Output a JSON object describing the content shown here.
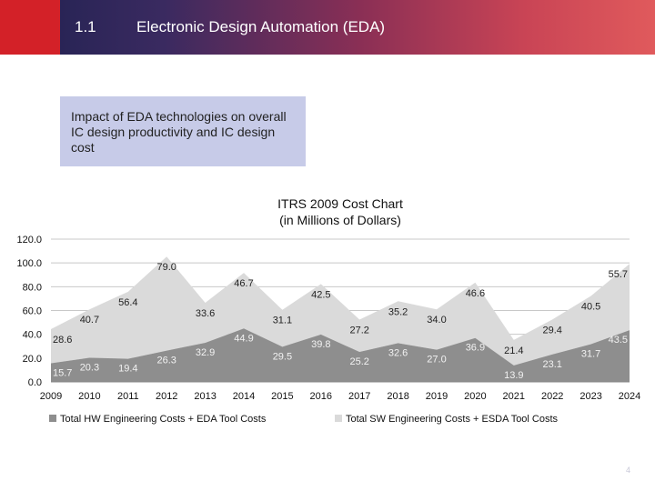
{
  "header": {
    "section_number": "1.1",
    "title": "Electronic Design Automation (EDA)"
  },
  "callout": {
    "text": "Impact of EDA technologies on overall IC design productivity and IC design cost"
  },
  "slide_number": "4",
  "colors": {
    "hw_series": "#8e8e8e",
    "sw_series": "#dadada",
    "header_red": "#d32128"
  },
  "chart_data": {
    "type": "area",
    "stacked": true,
    "title": [
      "ITRS 2009 Cost Chart",
      "(in Millions of Dollars)"
    ],
    "x": [
      "2009",
      "2010",
      "2011",
      "2012",
      "2013",
      "2014",
      "2015",
      "2016",
      "2017",
      "2018",
      "2019",
      "2020",
      "2021",
      "2022",
      "2023",
      "2024"
    ],
    "ylim": [
      0,
      120
    ],
    "yticks": [
      "0.0",
      "20.0",
      "40.0",
      "60.0",
      "80.0",
      "100.0",
      "120.0"
    ],
    "grid": true,
    "legend_position": "bottom",
    "series": [
      {
        "name": "Total HW Engineering Costs + EDA Tool Costs",
        "values": [
          15.7,
          20.3,
          19.4,
          26.3,
          32.9,
          44.9,
          29.5,
          39.8,
          25.2,
          32.6,
          27.0,
          36.9,
          13.9,
          23.1,
          31.7,
          43.5
        ],
        "labels": [
          "15.7",
          "20.3",
          "19.4",
          "26.3",
          "32.9",
          "44.9",
          "29.5",
          "39.8",
          "25.2",
          "32.6",
          "27.0",
          "36.9",
          "13.9",
          "23.1",
          "31.7",
          "43.5"
        ]
      },
      {
        "name": "Total SW Engineering Costs + ESDA Tool Costs",
        "values": [
          28.6,
          40.7,
          56.4,
          79.0,
          33.6,
          46.7,
          31.1,
          42.5,
          27.2,
          35.2,
          34.0,
          46.6,
          21.4,
          29.4,
          40.5,
          55.7
        ],
        "labels": [
          "28.6",
          "40.7",
          "56.4",
          "79.0",
          "33.6",
          "46.7",
          "31.1",
          "42.5",
          "27.2",
          "35.2",
          "34.0",
          "46.6",
          "21.4",
          "29.4",
          "40.5",
          "55.7"
        ]
      }
    ]
  }
}
